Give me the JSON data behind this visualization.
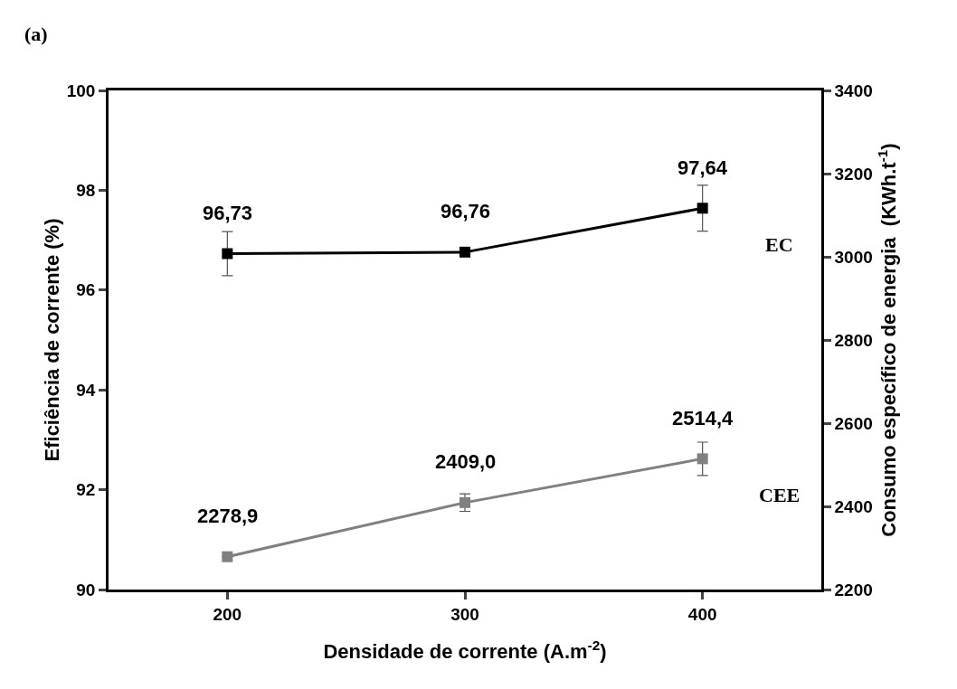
{
  "chart_data": {
    "type": "line",
    "xlabel": "Densidade de corrente (A.m$^{-2}$)",
    "ylabel": "Eficiência de corrente (%)",
    "y2label": "Consumo específico de energia  (KWh.t$^{-1}$)",
    "annotations": [
      "(a)"
    ],
    "x": [
      200,
      300,
      400
    ],
    "xlim": [
      150,
      450
    ],
    "xticks": [
      200,
      300,
      400
    ],
    "ylim": [
      90,
      100
    ],
    "yticks": [
      90,
      92,
      94,
      96,
      98,
      100
    ],
    "y2lim": [
      2200,
      3400
    ],
    "y2ticks": [
      2200,
      2400,
      2600,
      2800,
      3000,
      3200,
      3400
    ],
    "marker": "square",
    "line_style": "solid",
    "grid": false,
    "legend": false,
    "series": [
      {
        "name": "EC",
        "color": "#000000",
        "values": [
          96.73,
          96.76,
          97.64
        ],
        "errors": [
          0.44,
          null,
          0.46
        ],
        "value_labels": [
          "96,73",
          "96,76",
          "97,64"
        ]
      },
      {
        "name": "CEE",
        "color": "#808080",
        "axis": "y2",
        "values": [
          2278.9,
          2409.0,
          2514.4
        ],
        "errors": [
          null,
          21,
          40
        ],
        "value_labels": [
          "2278,9",
          "2409,0",
          "2514,4"
        ]
      }
    ]
  }
}
